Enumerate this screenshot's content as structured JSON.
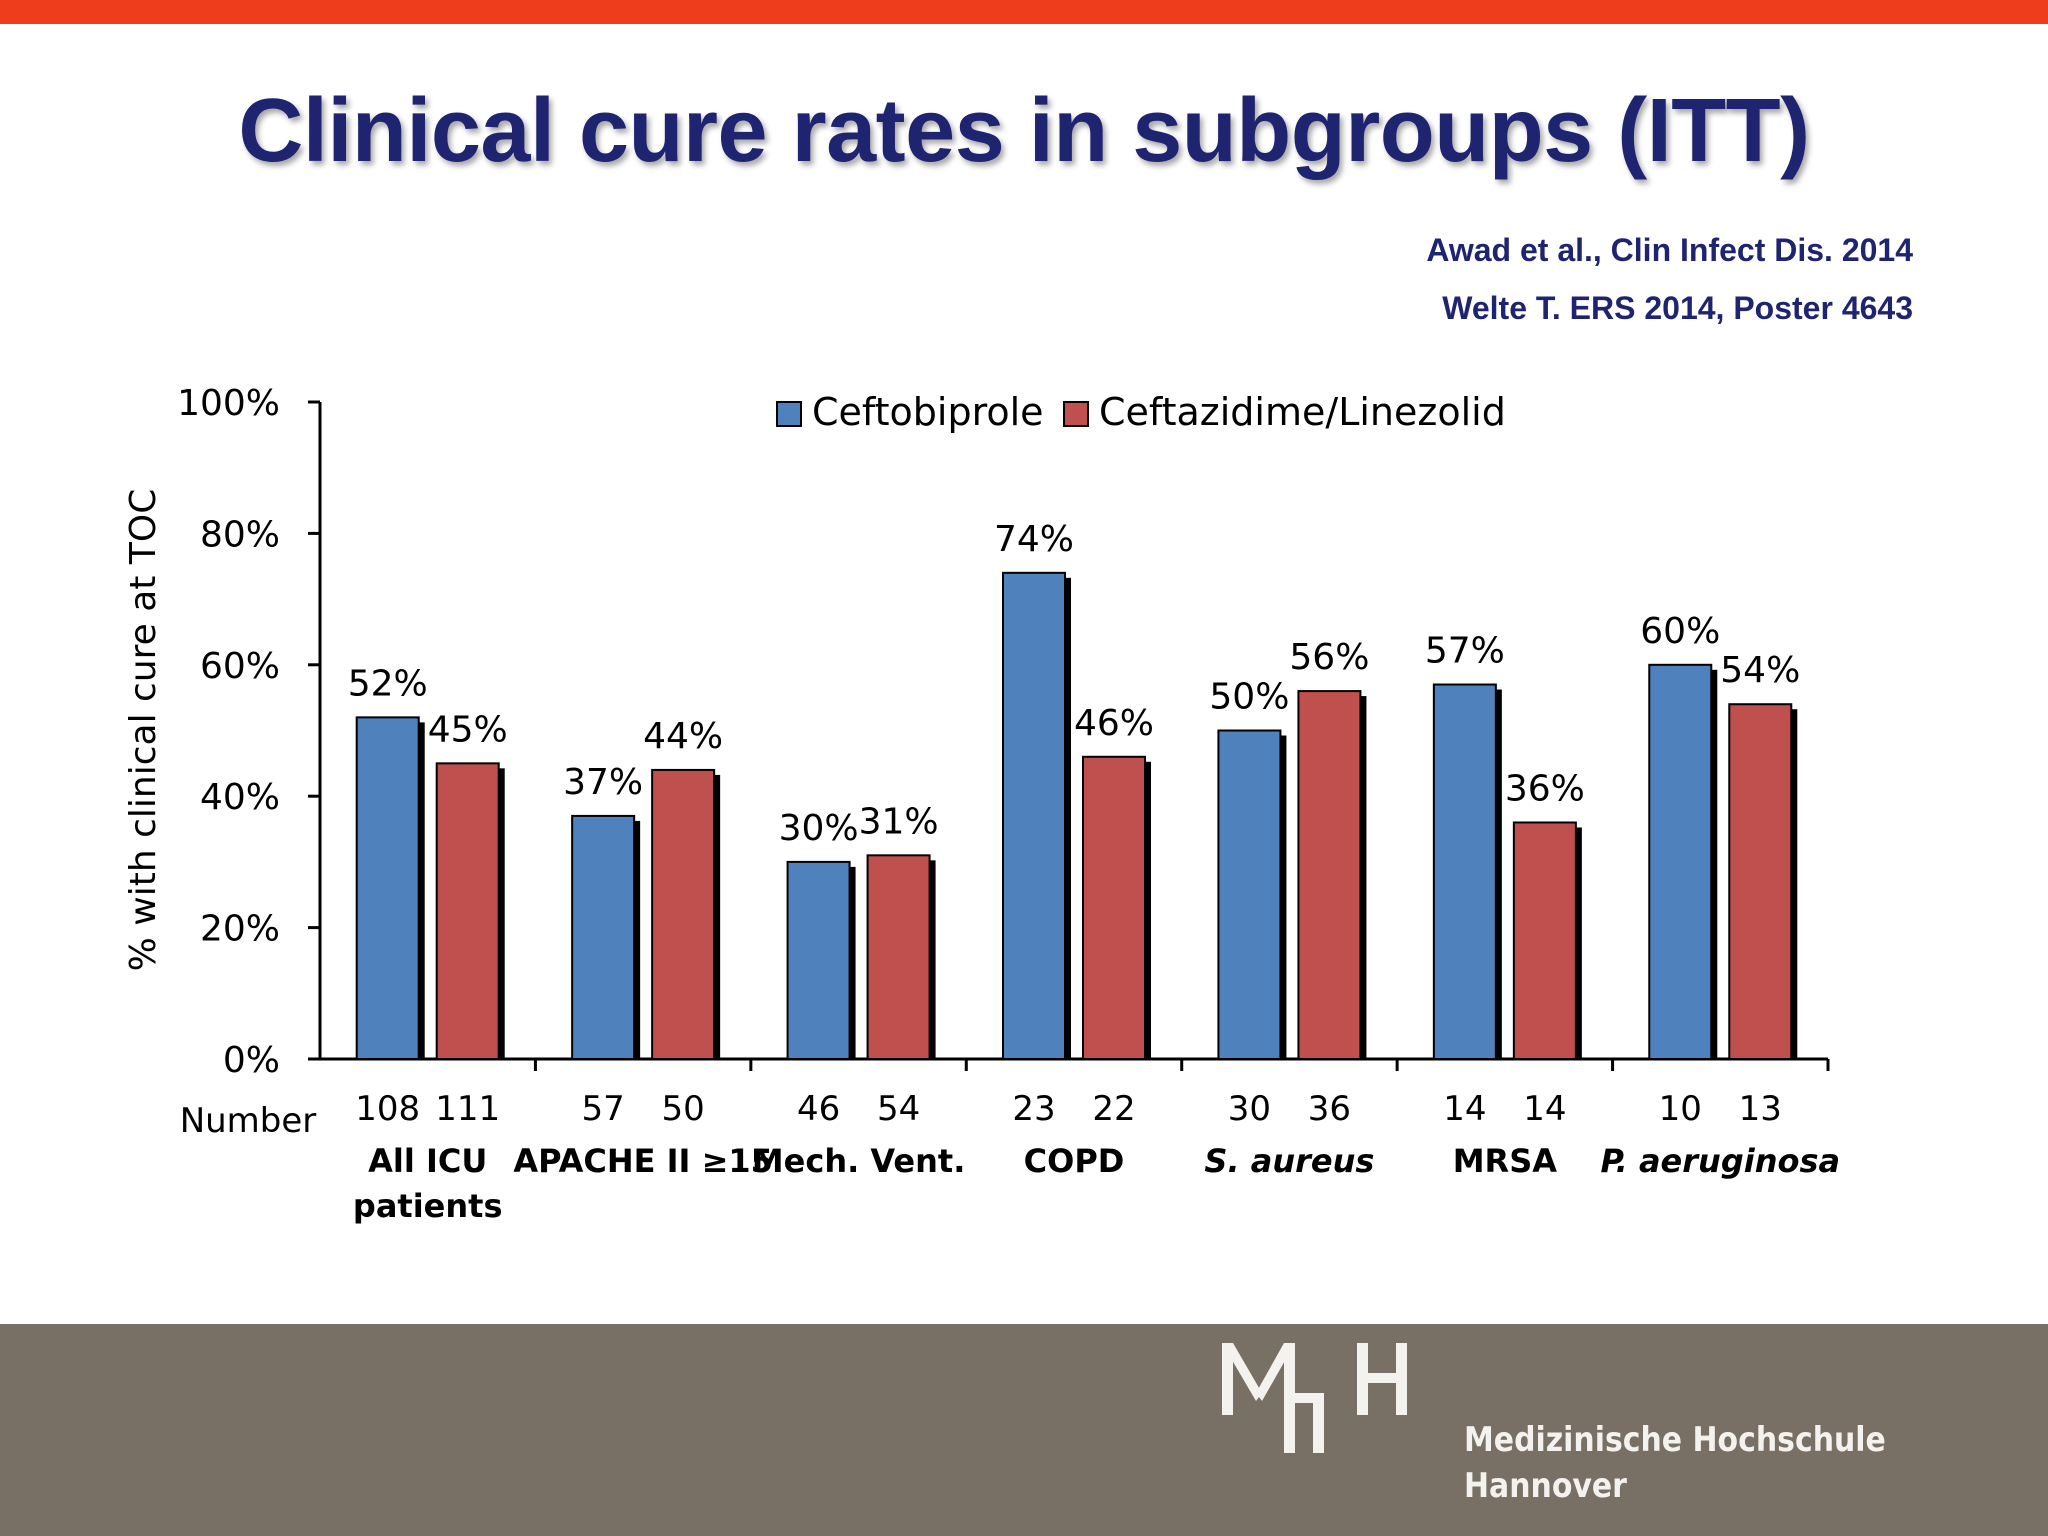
{
  "slide": {
    "title": "Clinical cure rates in subgroups (ITT)",
    "citations": [
      "Awad et al., Clin Infect Dis. 2014",
      "Welte T. ERS 2014, Poster 4643"
    ],
    "logo": {
      "mark": "MHH",
      "name_line1": "Medizinische Hochschule",
      "name_line2": "Hannover"
    }
  },
  "colors": {
    "accent_bar": "#ee3d1d",
    "title": "#1e2470",
    "ceftobiprole": "#4f81bd",
    "ceftazidime_linezolid": "#c0504d",
    "footer": "#797065"
  },
  "chart_data": {
    "type": "bar",
    "ylabel": "% with clinical cure at TOC",
    "ylim": [
      0,
      100
    ],
    "yticks": [
      "0%",
      "20%",
      "40%",
      "60%",
      "80%",
      "100%"
    ],
    "number_label": "Number",
    "legend_position": "top-center",
    "categories": [
      "All ICU patients",
      "APACHE II ≥15",
      "Mech. Vent.",
      "COPD",
      "S. aureus",
      "MRSA",
      "P. aeruginosa"
    ],
    "category_lines": [
      [
        "All ICU",
        "patients"
      ],
      [
        "APACHE II ≥15"
      ],
      [
        "Mech. Vent."
      ],
      [
        "COPD"
      ],
      [
        "S. aureus"
      ],
      [
        "MRSA"
      ],
      [
        "P. aeruginosa"
      ]
    ],
    "category_italic": [
      false,
      false,
      false,
      false,
      true,
      false,
      true
    ],
    "series": [
      {
        "name": "Ceftobiprole",
        "values": [
          52,
          37,
          30,
          74,
          50,
          57,
          60
        ],
        "labels": [
          "52%",
          "37%",
          "30%",
          "74%",
          "50%",
          "57%",
          "60%"
        ],
        "n": [
          "108",
          "57",
          "46",
          "23",
          "30",
          "14",
          "10"
        ]
      },
      {
        "name": "Ceftazidime/Linezolid",
        "values": [
          45,
          44,
          31,
          46,
          56,
          36,
          54
        ],
        "labels": [
          "45%",
          "44%",
          "31%",
          "46%",
          "56%",
          "36%",
          "54%"
        ],
        "n": [
          "111",
          "50",
          "54",
          "22",
          "36",
          "14",
          "13"
        ]
      }
    ]
  }
}
